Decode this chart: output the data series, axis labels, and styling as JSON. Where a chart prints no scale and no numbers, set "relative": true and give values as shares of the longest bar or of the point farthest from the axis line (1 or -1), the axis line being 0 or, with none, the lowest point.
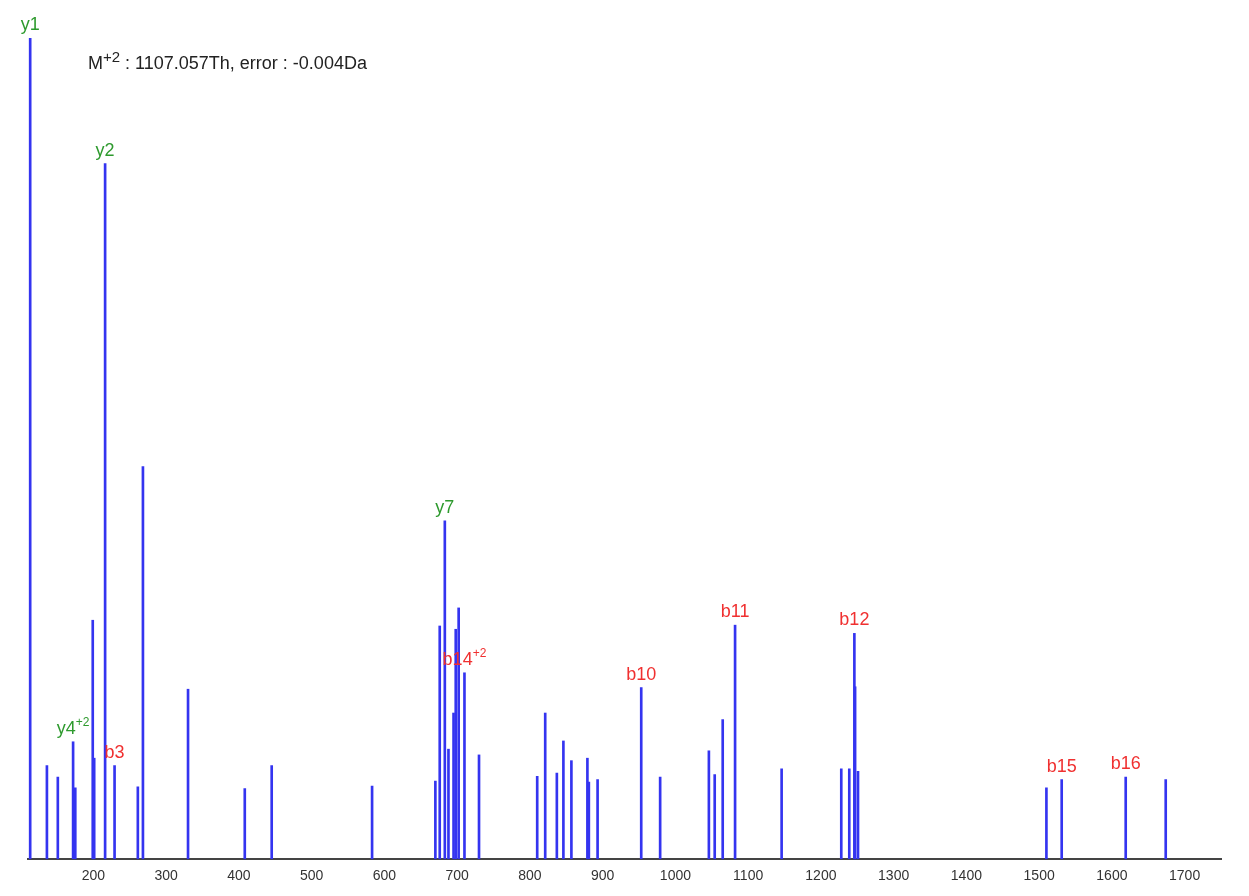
{
  "chart_data": {
    "type": "bar",
    "relative": true,
    "color": "#3434f0",
    "x": [
      113,
      136,
      151,
      172,
      175,
      199,
      201,
      216,
      229,
      261,
      268,
      330,
      408,
      445,
      583,
      670,
      676,
      683,
      688,
      695,
      698,
      702,
      708,
      710,
      730,
      810,
      821,
      837,
      846,
      857,
      879,
      881,
      893,
      953,
      979,
      1046,
      1054,
      1065,
      1082,
      1146,
      1228,
      1239,
      1246,
      1247,
      1251,
      1510,
      1531,
      1619,
      1674
    ],
    "values": [
      1,
      0.114,
      0.1,
      0.143,
      0.087,
      0.291,
      0.123,
      0.847,
      0.114,
      0.088,
      0.478,
      0.207,
      0.086,
      0.114,
      0.089,
      0.095,
      0.284,
      0.412,
      0.134,
      0.178,
      0.28,
      0.306,
      null,
      0.227,
      0.127,
      0.101,
      0.178,
      0.105,
      0.144,
      0.12,
      0.123,
      0.094,
      0.097,
      0.209,
      0.1,
      0.132,
      0.103,
      0.17,
      0.285,
      0.11,
      0.11,
      0.11,
      0.275,
      0.21,
      0.107,
      0.087,
      0.097,
      0.1,
      0.097
    ],
    "xlim": [
      110,
      1750
    ],
    "xticks": [
      200,
      300,
      400,
      500,
      600,
      700,
      800,
      900,
      1000,
      1100,
      1200,
      1300,
      1400,
      1500,
      1600,
      1700
    ],
    "grid": false,
    "legend": false,
    "annotations": [
      "M$^{+2}$ : 1107.057Th, error : -0.004Da",
      {
        "text": "y1",
        "x": 113,
        "y": 1
      },
      {
        "text": "y2",
        "x": 216,
        "y": 0.847
      },
      {
        "text": "y4$^{+2}$",
        "x": 172,
        "y": 0.143
      },
      {
        "text": "b3",
        "x": 229,
        "y": 0.114
      },
      {
        "text": "y7",
        "x": 683,
        "y": 0.412
      },
      {
        "text": "b14$^{+2}$",
        "x": 710,
        "y": 0.227
      },
      {
        "text": "b10",
        "x": 953,
        "y": 0.209
      },
      {
        "text": "b11",
        "x": 1082,
        "y": 0.285
      },
      {
        "text": "b12",
        "x": 1246,
        "y": 0.275
      },
      {
        "text": "b15",
        "x": 1531,
        "y": 0.097
      },
      {
        "text": "b16",
        "x": 1619,
        "y": 0.1
      }
    ]
  }
}
